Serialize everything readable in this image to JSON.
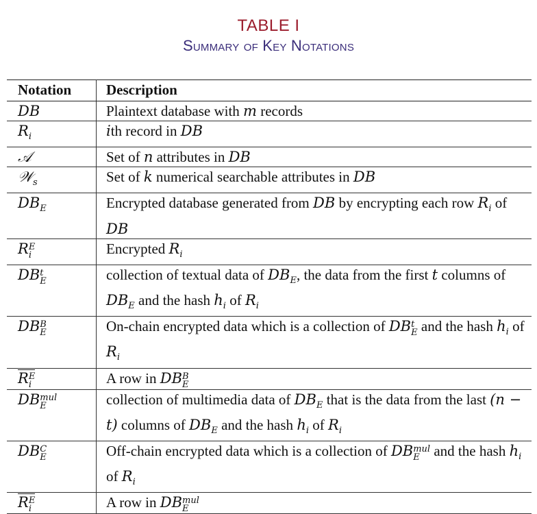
{
  "caption": {
    "label": "TABLE I",
    "title": "Summary of Key Notations"
  },
  "table": {
    "headers": [
      "Notation",
      "Description"
    ],
    "rows": [
      {
        "notation": "DB",
        "description": "Plaintext database with m records"
      },
      {
        "notation": "R_i",
        "description": "ith record in DB"
      },
      {
        "notation": "𝒜",
        "description": "Set of n attributes in DB"
      },
      {
        "notation": "𝒲_s",
        "description": "Set of k numerical searchable attributes in DB"
      },
      {
        "notation": "DB_E",
        "description": "Encrypted database generated from DB by encrypting each row R_i of DB"
      },
      {
        "notation": "R_i^E",
        "description": "Encrypted R_i"
      },
      {
        "notation": "DB_E^t",
        "description": "collection of textual data of DB_E, the data from the first t columns of DB_E and the hash h_i of R_i"
      },
      {
        "notation": "DB_E^B",
        "description": "On-chain encrypted data which is a collection of DB_E^t and the hash h_i of R_i"
      },
      {
        "notation": "overline(R_i^E)",
        "description": "A row in DB_E^B"
      },
      {
        "notation": "DB_E^mul",
        "description": "collection of multimedia data of DB_E that is the data from the last (n − t) columns of DB_E and the hash h_i of R_i"
      },
      {
        "notation": "DB_E^C",
        "description": "Off-chain encrypted data which is a collection of DB_E^mul and the hash h_i of R_i"
      },
      {
        "notation": "double-overline(R_i^E)",
        "description": "A row in DB_E^mul"
      }
    ]
  }
}
